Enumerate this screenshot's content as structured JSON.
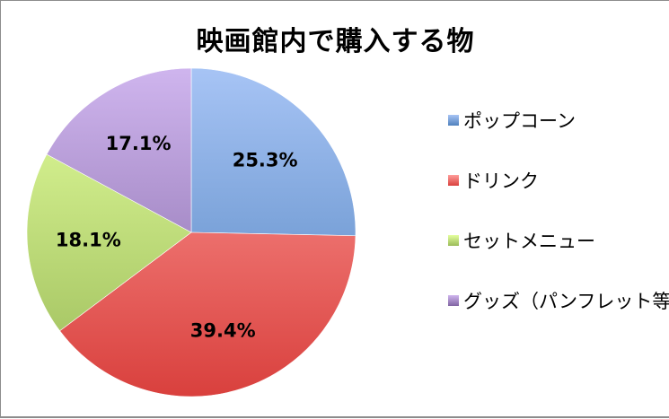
{
  "chart_data": {
    "type": "pie",
    "title": "映画館内で購入する物",
    "slices": [
      {
        "name": "ポップコーン",
        "value": 25.3,
        "label": "25.3%",
        "color": "#4f81bd",
        "light": "#a7c4f5"
      },
      {
        "name": "ドリンク",
        "value": 39.4,
        "label": "39.4%",
        "color": "#d9403d",
        "light": "#ff9e9b"
      },
      {
        "name": "セットメニュー",
        "value": 18.1,
        "label": "18.1%",
        "color": "#9bbb59",
        "light": "#e4ff9e"
      },
      {
        "name": "グッズ（パンフレット等）",
        "value": 17.1,
        "label": "17.1%",
        "color": "#8064a2",
        "light": "#cfb5ee"
      }
    ],
    "legend_placement": "right",
    "start_angle": "12 o'clock",
    "direction": "clockwise"
  }
}
